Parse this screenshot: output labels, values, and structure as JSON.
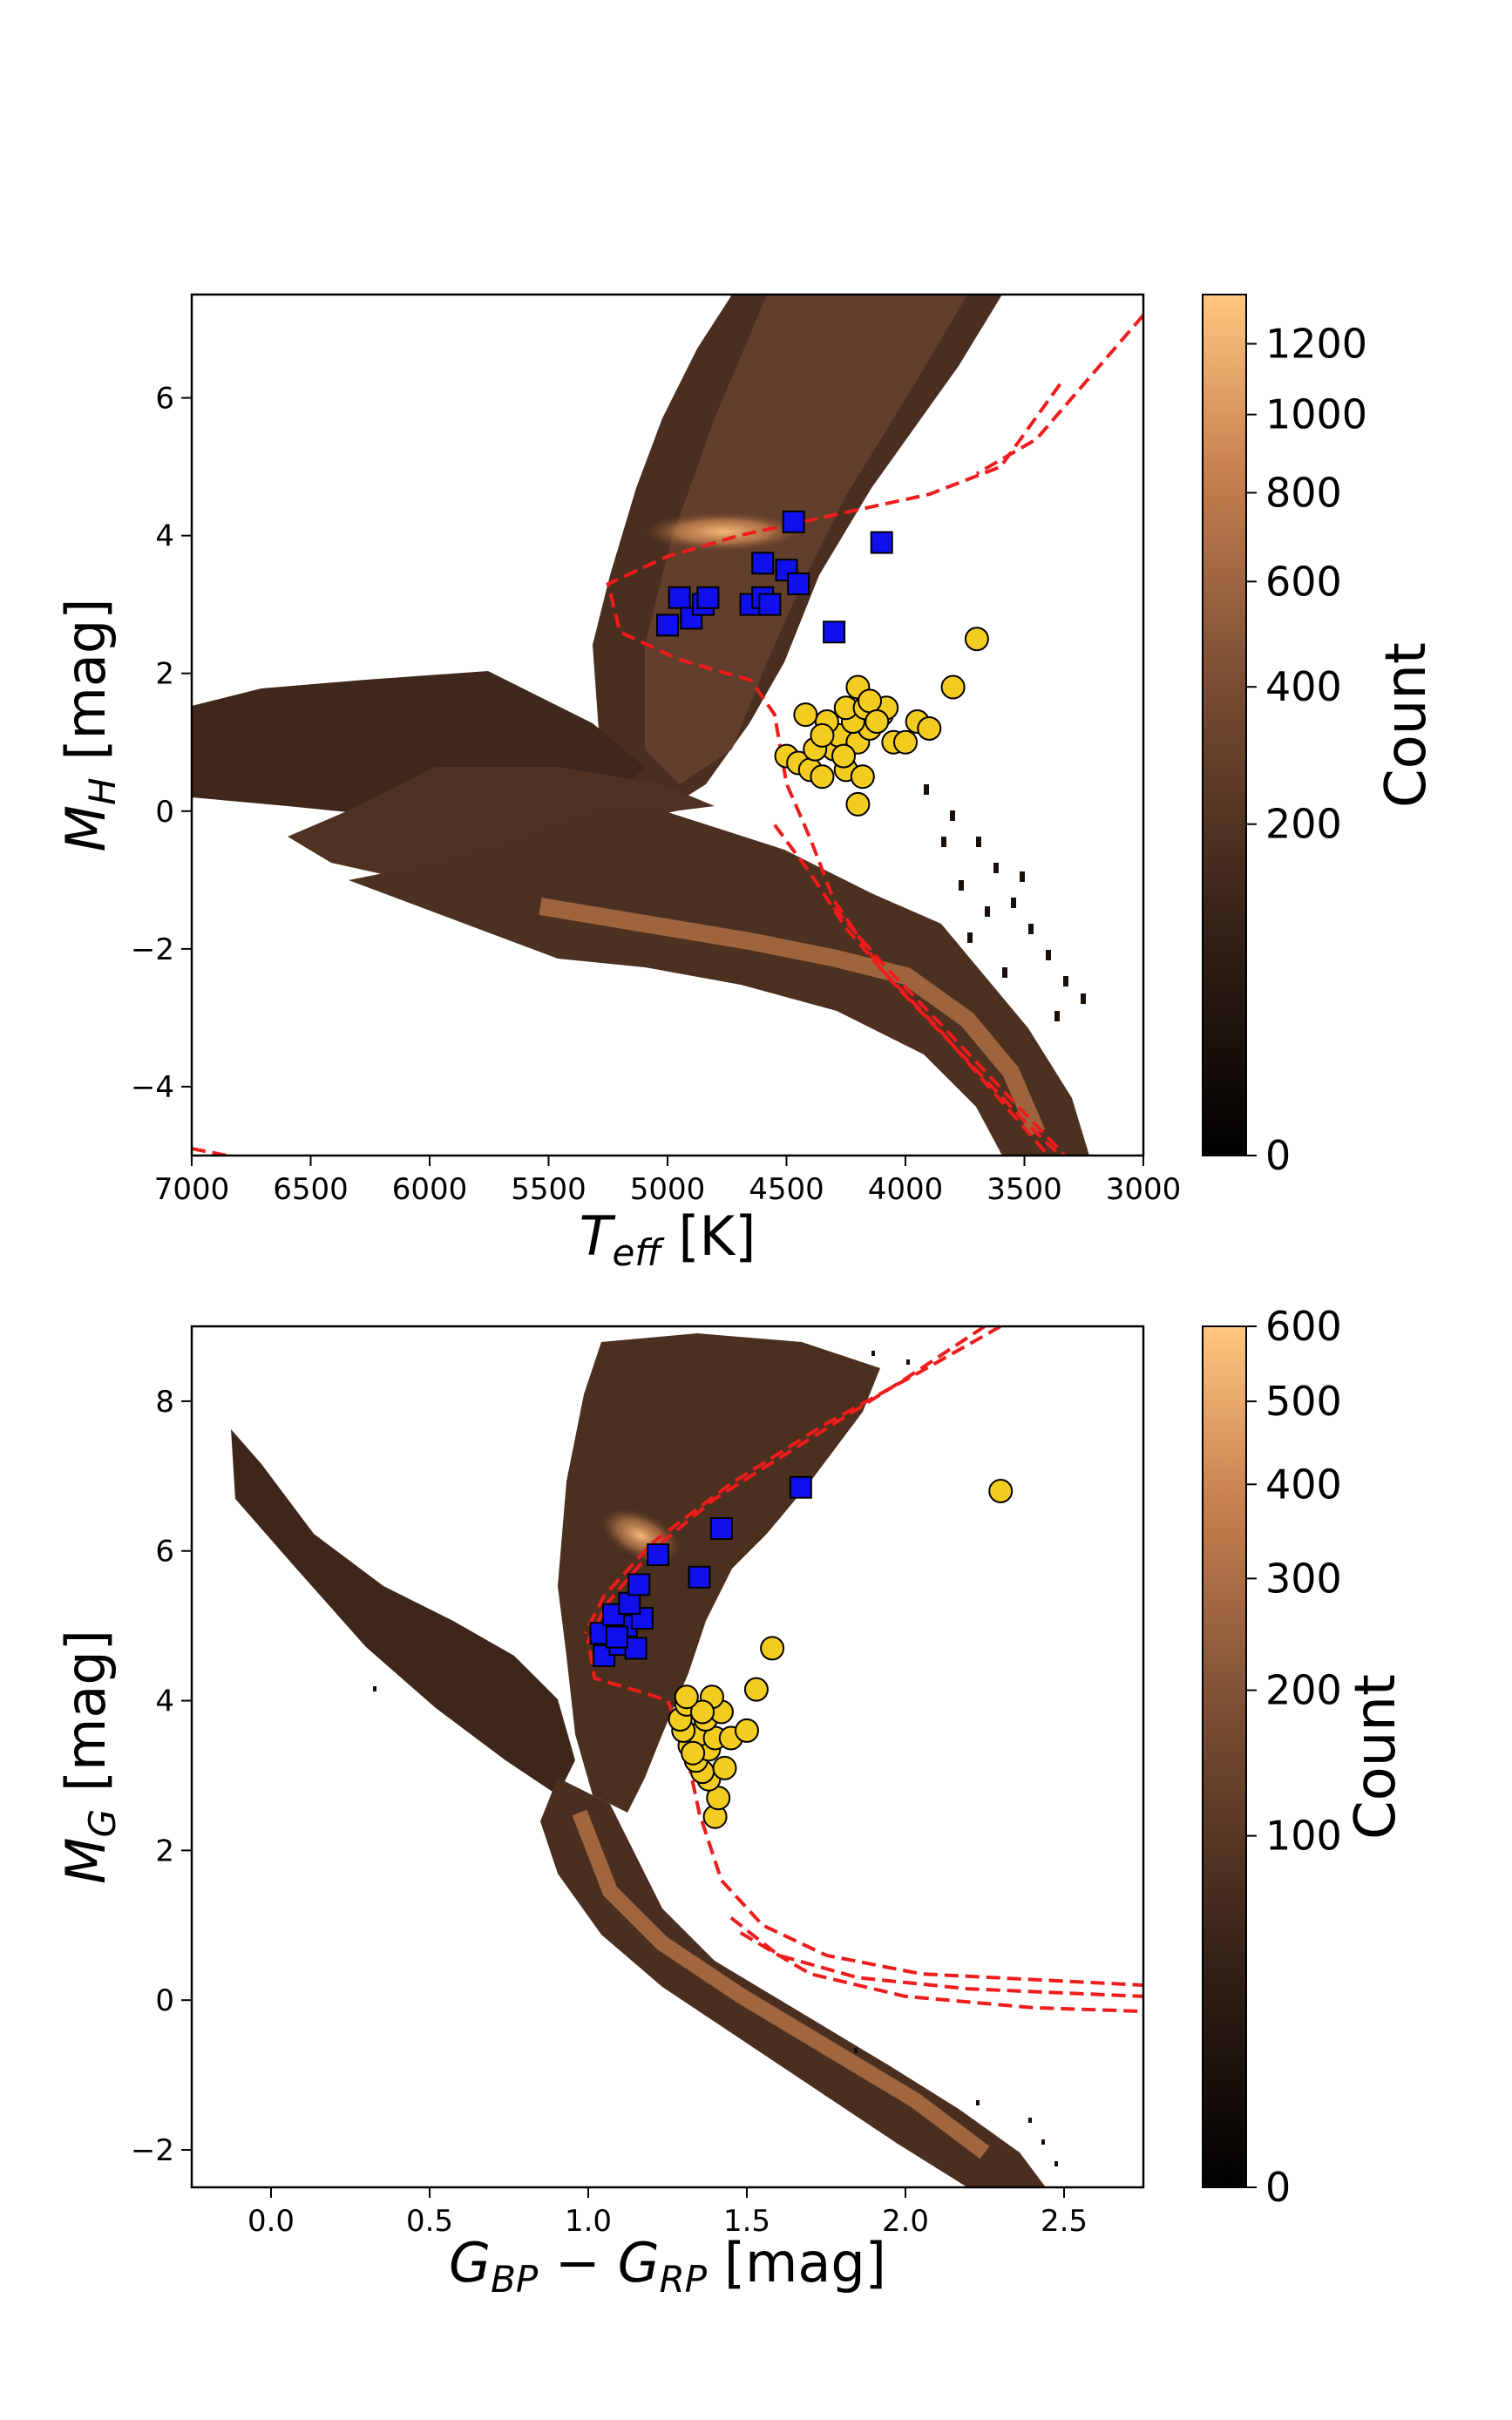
{
  "chart_data": [
    {
      "type": "heatmap",
      "title": "",
      "xlabel": "T_eff [K]",
      "ylabel": "M_H [mag]",
      "xlim": [
        7000,
        3000
      ],
      "ylim": [
        7.5,
        -5.0
      ],
      "xticks": [
        7000,
        6500,
        6000,
        5500,
        5000,
        4500,
        4000,
        3500,
        3000
      ],
      "yticks": [
        6,
        4,
        2,
        0,
        -2,
        -4
      ],
      "colorbar": {
        "label": "Count",
        "ticks": [
          0,
          200,
          400,
          600,
          800,
          1000,
          1200
        ],
        "max": 1350
      },
      "isochrones": [
        {
          "name": "isochrone-1",
          "points": [
            [
              7000,
              -4.9
            ],
            [
              6700,
              -5.1
            ]
          ]
        },
        {
          "name": "isochrone-2",
          "points": [
            [
              3350,
              6.2
            ],
            [
              3600,
              5.0
            ],
            [
              3900,
              4.6
            ],
            [
              4300,
              4.3
            ],
            [
              4700,
              4.0
            ],
            [
              5000,
              3.7
            ],
            [
              5250,
              3.3
            ],
            [
              5200,
              2.6
            ],
            [
              4950,
              2.2
            ],
            [
              4650,
              1.9
            ],
            [
              4550,
              1.4
            ],
            [
              4500,
              0.4
            ],
            [
              4400,
              -0.4
            ],
            [
              4300,
              -1.3
            ],
            [
              4100,
              -2.3
            ],
            [
              3850,
              -3.2
            ],
            [
              3550,
              -4.4
            ],
            [
              3400,
              -5.0
            ]
          ]
        },
        {
          "name": "isochrone-3",
          "points": [
            [
              4550,
              -0.2
            ],
            [
              4400,
              -0.9
            ],
            [
              4250,
              -1.7
            ],
            [
              4050,
              -2.5
            ],
            [
              3800,
              -3.4
            ],
            [
              3500,
              -4.5
            ],
            [
              3350,
              -5.0
            ]
          ]
        },
        {
          "name": "isochrone-4",
          "points": [
            [
              4300,
              -1.4
            ],
            [
              4100,
              -2.2
            ],
            [
              3850,
              -3.1
            ],
            [
              3550,
              -4.2
            ],
            [
              3330,
              -5.0
            ]
          ]
        },
        {
          "name": "isochrone-5",
          "points": [
            [
              3000,
              7.2
            ],
            [
              3200,
              6.4
            ],
            [
              3450,
              5.4
            ],
            [
              3700,
              4.9
            ]
          ]
        }
      ],
      "series": [
        {
          "name": "yellow-circles",
          "marker": "circle",
          "color": "#f2cc1e",
          "points": [
            [
              4500,
              0.8
            ],
            [
              4450,
              0.7
            ],
            [
              4400,
              0.6
            ],
            [
              4350,
              0.5
            ],
            [
              4200,
              0.1
            ],
            [
              4250,
              0.6
            ],
            [
              4300,
              0.9
            ],
            [
              4380,
              0.9
            ],
            [
              4280,
              1.1
            ],
            [
              4200,
              1.0
            ],
            [
              4150,
              1.2
            ],
            [
              4100,
              1.4
            ],
            [
              4050,
              1.0
            ],
            [
              4000,
              1.0
            ],
            [
              4220,
              1.3
            ],
            [
              4330,
              1.3
            ],
            [
              4420,
              1.4
            ],
            [
              4250,
              1.5
            ],
            [
              4170,
              1.5
            ],
            [
              4080,
              1.5
            ],
            [
              4200,
              1.8
            ],
            [
              4150,
              1.6
            ],
            [
              3950,
              1.3
            ],
            [
              3900,
              1.2
            ],
            [
              3800,
              1.8
            ],
            [
              3700,
              2.5
            ],
            [
              4350,
              1.1
            ],
            [
              4180,
              0.5
            ],
            [
              4260,
              0.8
            ],
            [
              4120,
              1.3
            ]
          ]
        },
        {
          "name": "blue-squares",
          "marker": "square",
          "color": "#1010ee",
          "points": [
            [
              5000,
              2.7
            ],
            [
              4950,
              3.1
            ],
            [
              4900,
              2.8
            ],
            [
              4850,
              3.0
            ],
            [
              4830,
              3.1
            ],
            [
              4650,
              3.0
            ],
            [
              4600,
              3.1
            ],
            [
              4600,
              3.6
            ],
            [
              4500,
              3.5
            ],
            [
              4450,
              3.3
            ],
            [
              4300,
              2.6
            ],
            [
              4100,
              3.9
            ],
            [
              4470,
              4.2
            ],
            [
              4570,
              3.0
            ]
          ]
        }
      ]
    },
    {
      "type": "heatmap",
      "title": "",
      "xlabel": "G_BP − G_RP [mag]",
      "ylabel": "M_G [mag]",
      "xlim": [
        -0.25,
        2.75
      ],
      "ylim": [
        9.0,
        -2.5
      ],
      "xticks": [
        0.0,
        0.5,
        1.0,
        1.5,
        2.0,
        2.5
      ],
      "yticks": [
        8,
        6,
        4,
        2,
        0,
        -2
      ],
      "colorbar": {
        "label": "Count",
        "ticks": [
          0,
          100,
          200,
          300,
          400,
          500,
          600
        ],
        "max": 600
      },
      "isochrones": [
        {
          "name": "isochrone-1",
          "points": [
            [
              2.25,
              9.0
            ],
            [
              2.0,
              8.3
            ],
            [
              1.7,
              7.5
            ],
            [
              1.4,
              6.7
            ],
            [
              1.2,
              6.0
            ],
            [
              1.06,
              5.3
            ],
            [
              1.0,
              4.8
            ],
            [
              1.02,
              4.3
            ],
            [
              1.18,
              4.1
            ],
            [
              1.25,
              4.0
            ],
            [
              1.3,
              3.5
            ],
            [
              1.35,
              2.5
            ],
            [
              1.42,
              1.6
            ],
            [
              1.55,
              1.0
            ],
            [
              1.75,
              0.6
            ],
            [
              2.05,
              0.35
            ],
            [
              2.75,
              0.2
            ]
          ]
        },
        {
          "name": "isochrone-2",
          "points": [
            [
              1.45,
              1.1
            ],
            [
              1.6,
              0.6
            ],
            [
              1.85,
              0.3
            ],
            [
              2.2,
              0.15
            ],
            [
              2.75,
              0.05
            ]
          ]
        },
        {
          "name": "isochrone-3",
          "points": [
            [
              1.48,
              0.9
            ],
            [
              1.7,
              0.35
            ],
            [
              2.0,
              0.05
            ],
            [
              2.4,
              -0.1
            ],
            [
              2.75,
              -0.15
            ]
          ]
        },
        {
          "name": "isochrone-4",
          "points": [
            [
              2.3,
              9.0
            ],
            [
              2.05,
              8.4
            ],
            [
              1.75,
              7.7
            ],
            [
              1.45,
              6.9
            ],
            [
              1.2,
              6.1
            ],
            [
              1.05,
              5.4
            ],
            [
              0.99,
              4.9
            ]
          ]
        }
      ],
      "series": [
        {
          "name": "yellow-circles",
          "marker": "circle",
          "color": "#f2cc1e",
          "points": [
            [
              1.4,
              2.45
            ],
            [
              1.41,
              2.7
            ],
            [
              1.38,
              2.95
            ],
            [
              1.36,
              3.05
            ],
            [
              1.43,
              3.1
            ],
            [
              1.34,
              3.2
            ],
            [
              1.38,
              3.35
            ],
            [
              1.32,
              3.4
            ],
            [
              1.35,
              3.55
            ],
            [
              1.3,
              3.6
            ],
            [
              1.4,
              3.5
            ],
            [
              1.45,
              3.5
            ],
            [
              1.29,
              3.75
            ],
            [
              1.37,
              3.75
            ],
            [
              1.42,
              3.85
            ],
            [
              1.31,
              3.95
            ],
            [
              1.39,
              4.05
            ],
            [
              1.5,
              3.6
            ],
            [
              1.53,
              4.15
            ],
            [
              1.58,
              4.7
            ],
            [
              2.3,
              6.8
            ],
            [
              1.33,
              3.3
            ],
            [
              1.36,
              3.85
            ],
            [
              1.31,
              4.05
            ]
          ]
        },
        {
          "name": "blue-squares",
          "marker": "square",
          "color": "#1010ee",
          "points": [
            [
              1.05,
              4.6
            ],
            [
              1.1,
              4.75
            ],
            [
              1.15,
              4.7
            ],
            [
              1.04,
              4.9
            ],
            [
              1.12,
              5.0
            ],
            [
              1.08,
              5.15
            ],
            [
              1.17,
              5.1
            ],
            [
              1.13,
              5.3
            ],
            [
              1.16,
              5.55
            ],
            [
              1.35,
              5.65
            ],
            [
              1.22,
              5.95
            ],
            [
              1.42,
              6.3
            ],
            [
              1.67,
              6.85
            ],
            [
              1.09,
              4.85
            ]
          ]
        }
      ]
    }
  ]
}
